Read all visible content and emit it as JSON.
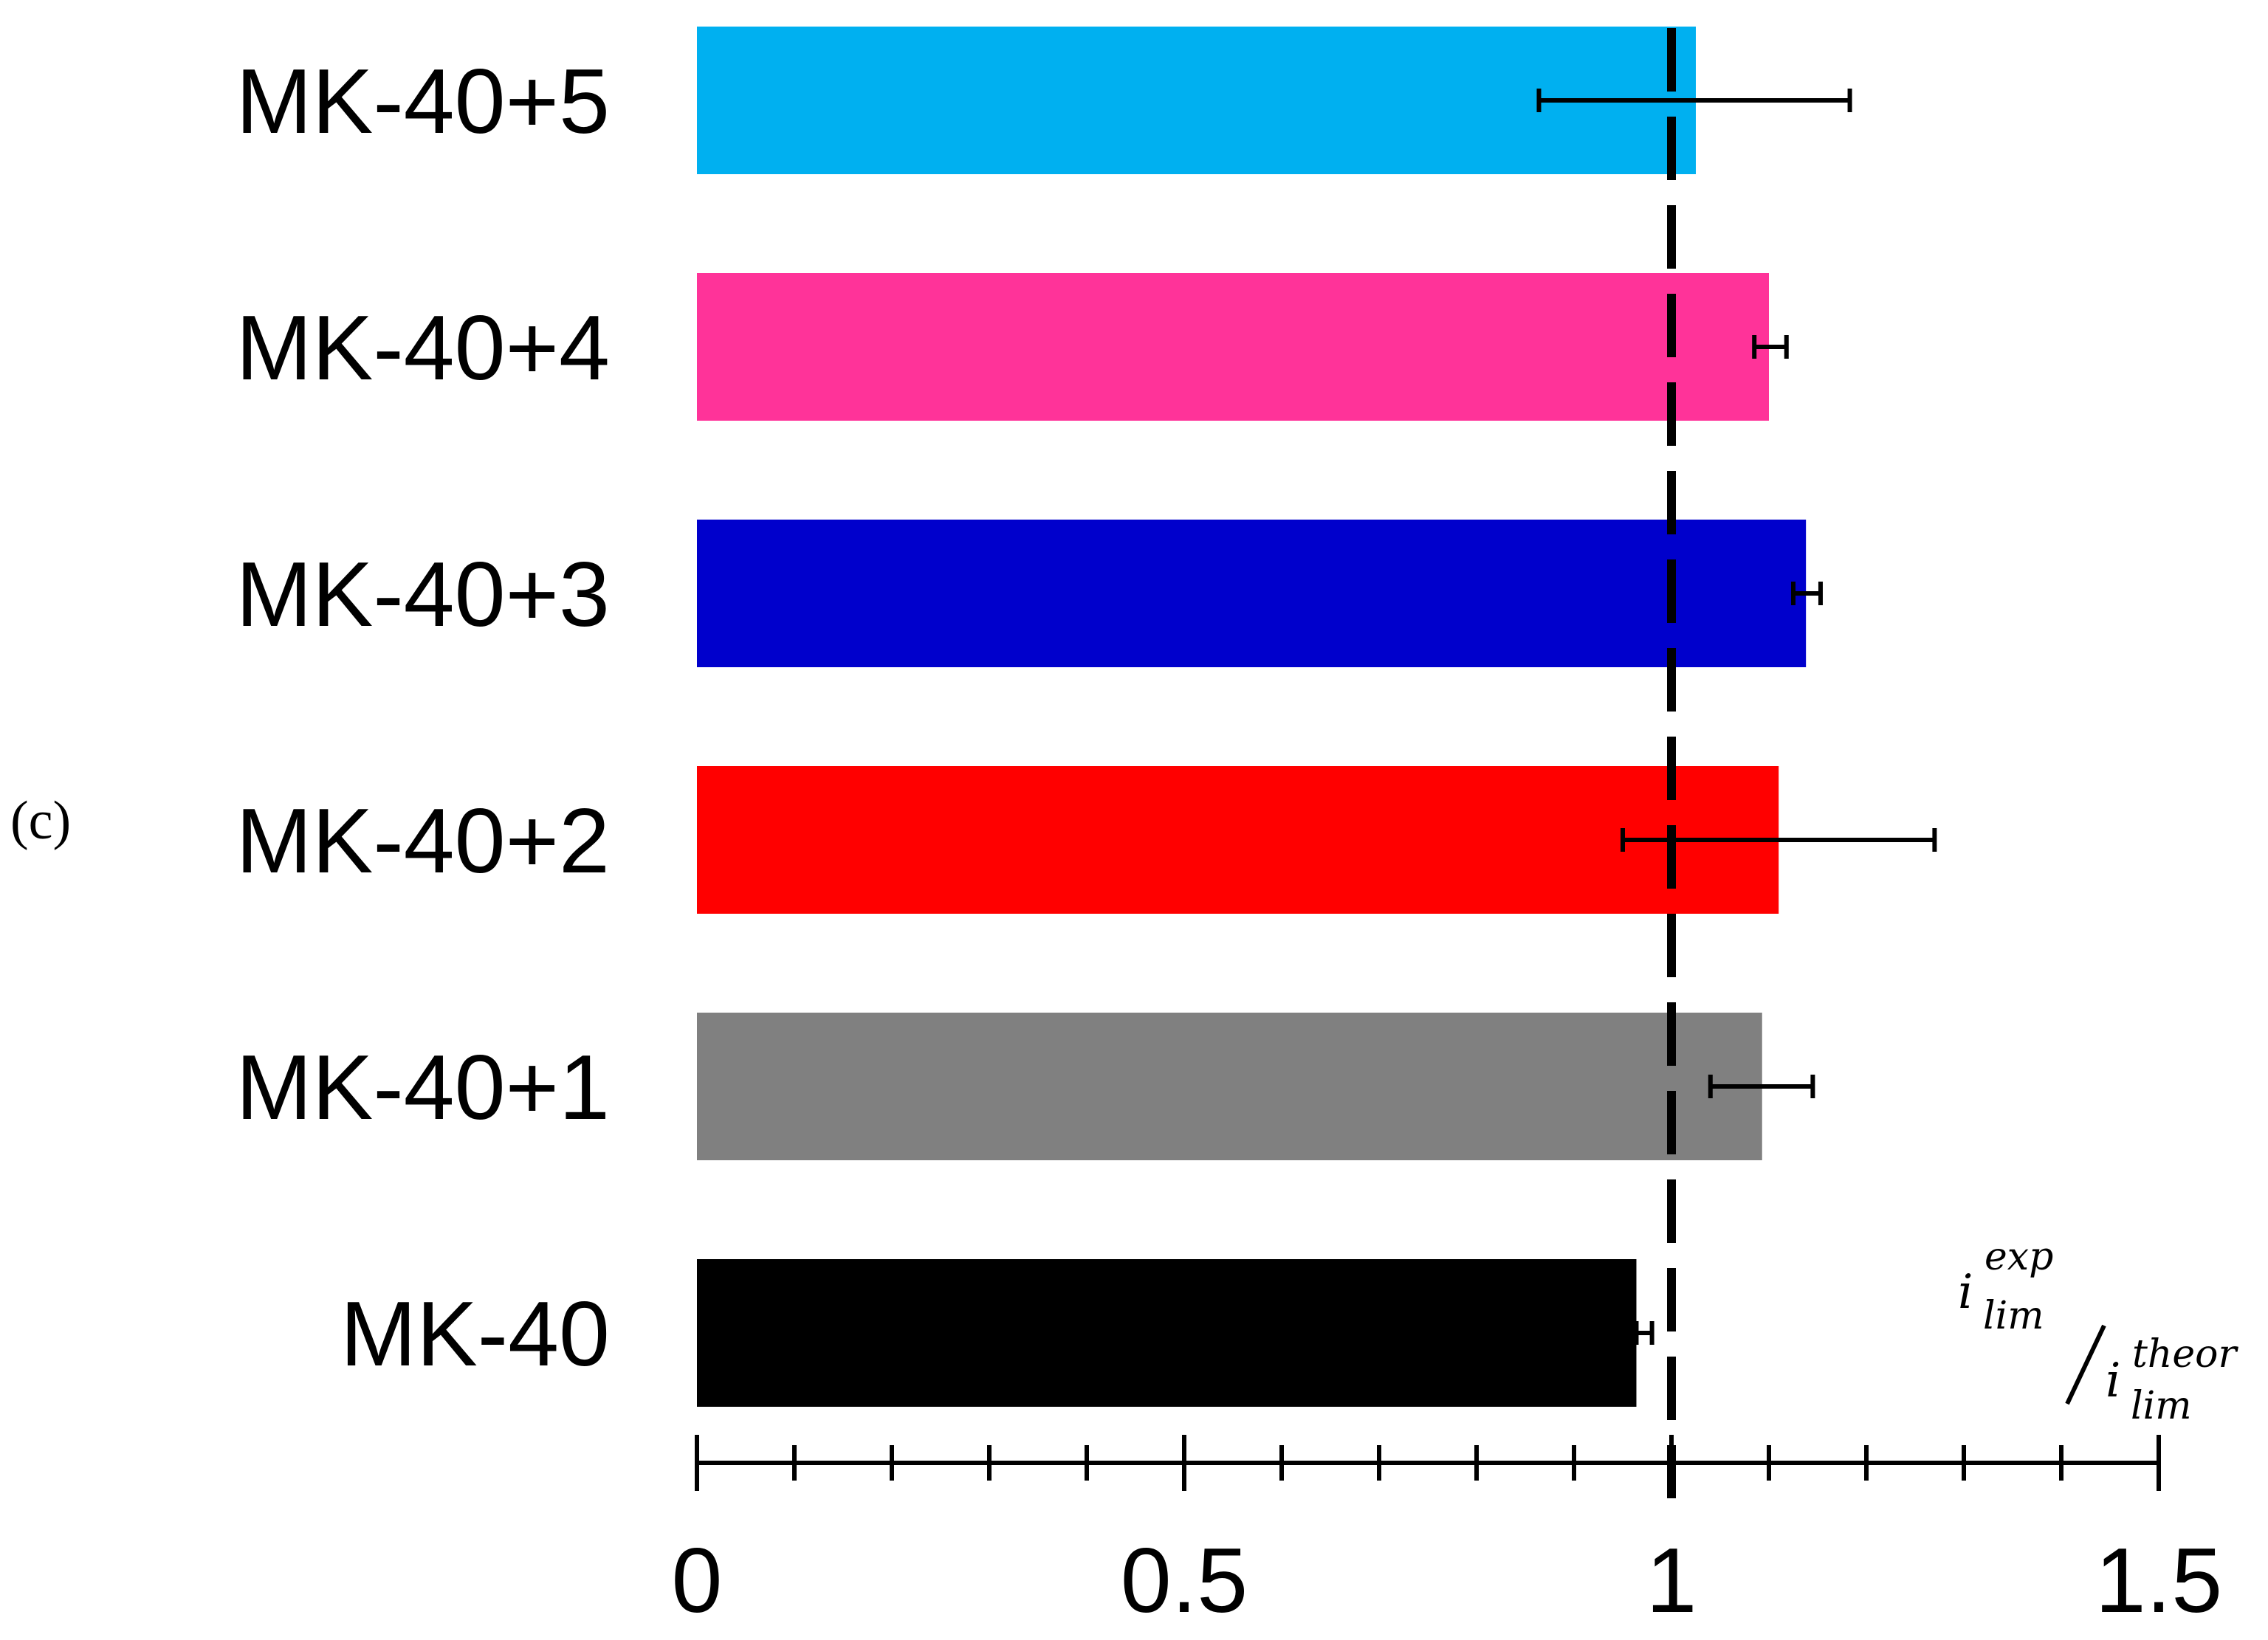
{
  "panel_label": "(c)",
  "chart_data": {
    "type": "bar",
    "orientation": "horizontal",
    "categories": [
      "MK-40+5",
      "MK-40+4",
      "MK-40+3",
      "MK-40+2",
      "MK-40+1",
      "MK-40"
    ],
    "values": [
      1.025,
      1.1,
      1.138,
      1.11,
      1.093,
      0.964
    ],
    "error_low": [
      0.864,
      1.085,
      1.125,
      0.95,
      1.04,
      0.964
    ],
    "error_high": [
      1.183,
      1.118,
      1.153,
      1.27,
      1.145,
      0.98
    ],
    "colors": [
      "#00B0F0",
      "#FF3399",
      "#0000CC",
      "#FF0000",
      "#808080",
      "#000000"
    ],
    "xlim": [
      0,
      1.5
    ],
    "xticks": [
      0,
      0.5,
      1,
      1.5
    ],
    "xtick_labels": [
      "0",
      "0.5",
      "1",
      "1.5"
    ],
    "minor_tick_step": 0.1,
    "reference_line": {
      "x": 1,
      "style": "dashed",
      "color": "#000000"
    },
    "xlabel": {
      "numerator": {
        "base": "i",
        "sup": "exp",
        "sub": "lim"
      },
      "denominator": {
        "base": "i",
        "sup": "theor",
        "sub": "lim"
      }
    },
    "ylabel": "",
    "title": "",
    "grid": false,
    "legend": "none"
  }
}
